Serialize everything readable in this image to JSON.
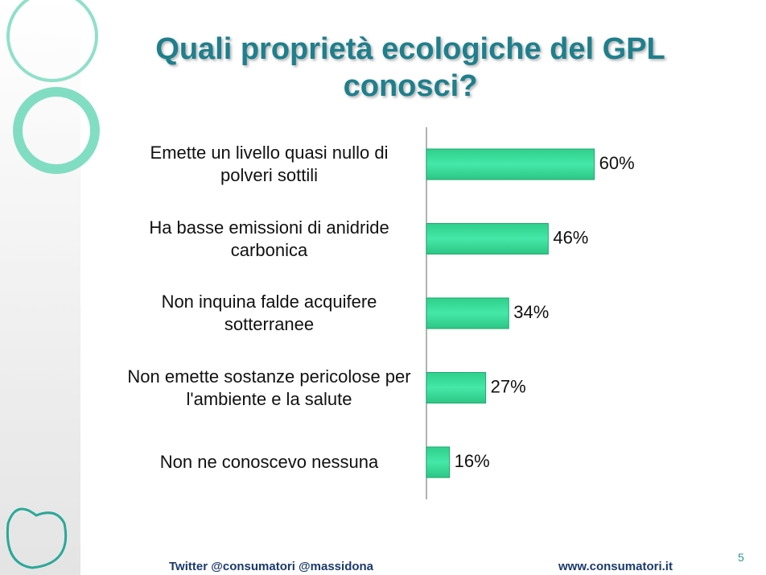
{
  "title": "Quali proprietà ecologiche del GPL conosci?",
  "chart_data": {
    "type": "hbar",
    "categories": [
      "Emette un livello quasi nullo di polveri sottili",
      "Ha basse emissioni di anidride carbonica",
      "Non inquina falde acquifere sotterranee",
      "Non emette sostanze pericolose per l'ambiente e la salute",
      "Non ne conoscevo nessuna"
    ],
    "values": [
      60,
      46,
      34,
      27,
      16
    ],
    "value_labels": [
      "60%",
      "46%",
      "34%",
      "27%",
      "16%"
    ],
    "color": "#36dc98",
    "xlim": [
      9,
      70
    ]
  },
  "footer": {
    "twitter": "Twitter  @consumatori  @massidona",
    "website": "www.consumatori.it",
    "page_number": "5"
  }
}
